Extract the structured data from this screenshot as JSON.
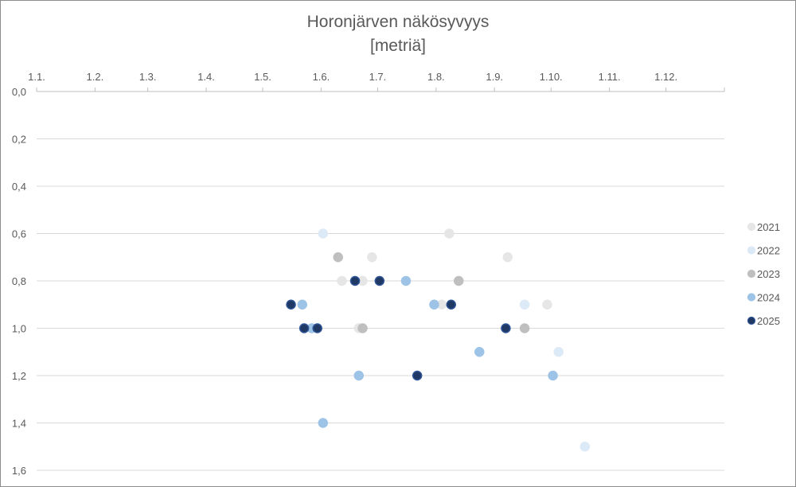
{
  "chart_data": {
    "type": "scatter",
    "title": "Horonjärven näkösyvyys",
    "subtitle": "[metriä]",
    "x_axis": {
      "position": "top",
      "ticks": [
        {
          "label": "1.1.",
          "value": 0
        },
        {
          "label": "1.2.",
          "value": 31
        },
        {
          "label": "1.3.",
          "value": 59
        },
        {
          "label": "1.4.",
          "value": 90
        },
        {
          "label": "1.5.",
          "value": 120
        },
        {
          "label": "1.6.",
          "value": 151
        },
        {
          "label": "1.7.",
          "value": 181
        },
        {
          "label": "1.8.",
          "value": 212
        },
        {
          "label": "1.9.",
          "value": 243
        },
        {
          "label": "1.10.",
          "value": 273
        },
        {
          "label": "1.11.",
          "value": 304
        },
        {
          "label": "1.12.",
          "value": 334
        }
      ],
      "range": [
        0,
        365
      ]
    },
    "y_axis": {
      "reversed": true,
      "range": [
        0,
        1.6
      ],
      "ticks": [
        "0,0",
        "0,2",
        "0,4",
        "0,6",
        "0,8",
        "1,0",
        "1,2",
        "1,4",
        "1,6"
      ],
      "gridlines": true
    },
    "legend_position": "right",
    "series": [
      {
        "name": "2021",
        "color": "#e6e6e6",
        "edge": "#e6e6e6",
        "points": [
          {
            "x": "12.6.",
            "y": 0.8
          },
          {
            "x": "23.6.",
            "y": 0.8
          },
          {
            "x": "21.6.",
            "y": 1.0
          },
          {
            "x": "28.6.",
            "y": 0.7
          },
          {
            "x": "4.8.",
            "y": 0.9
          },
          {
            "x": "8.8.",
            "y": 0.6
          },
          {
            "x": "8.9.",
            "y": 0.7
          },
          {
            "x": "29.9.",
            "y": 0.9
          }
        ]
      },
      {
        "name": "2022",
        "color": "#dce9f7",
        "edge": "#dce9f7",
        "points": [
          {
            "x": "2.6.",
            "y": 0.6
          },
          {
            "x": "17.9.",
            "y": 0.9
          },
          {
            "x": "5.10.",
            "y": 1.1
          },
          {
            "x": "19.10.",
            "y": 1.5
          }
        ]
      },
      {
        "name": "2023",
        "color": "#bfbfbf",
        "edge": "#bfbfbf",
        "points": [
          {
            "x": "10.6.",
            "y": 0.7
          },
          {
            "x": "23.6.",
            "y": 1.0
          },
          {
            "x": "13.8.",
            "y": 0.8
          },
          {
            "x": "17.9.",
            "y": 1.0
          }
        ]
      },
      {
        "name": "2024",
        "color": "#9dc3e6",
        "edge": "#9dc3e6",
        "points": [
          {
            "x": "22.5.",
            "y": 0.9
          },
          {
            "x": "27.5.",
            "y": 1.0
          },
          {
            "x": "2.6.",
            "y": 1.4
          },
          {
            "x": "21.6.",
            "y": 1.2
          },
          {
            "x": "16.7.",
            "y": 0.8
          },
          {
            "x": "31.7.",
            "y": 0.9
          },
          {
            "x": "24.8.",
            "y": 1.1
          },
          {
            "x": "2.10.",
            "y": 1.2
          }
        ]
      },
      {
        "name": "2025",
        "color": "#203864",
        "edge": "#2f5597",
        "points": [
          {
            "x": "16.5.",
            "y": 0.9
          },
          {
            "x": "23.5.",
            "y": 1.0
          },
          {
            "x": "30.5.",
            "y": 1.0
          },
          {
            "x": "19.6.",
            "y": 0.8
          },
          {
            "x": "2.7.",
            "y": 0.8
          },
          {
            "x": "22.7.",
            "y": 1.2
          },
          {
            "x": "9.8.",
            "y": 0.9
          },
          {
            "x": "7.9.",
            "y": 1.0
          }
        ]
      }
    ]
  }
}
